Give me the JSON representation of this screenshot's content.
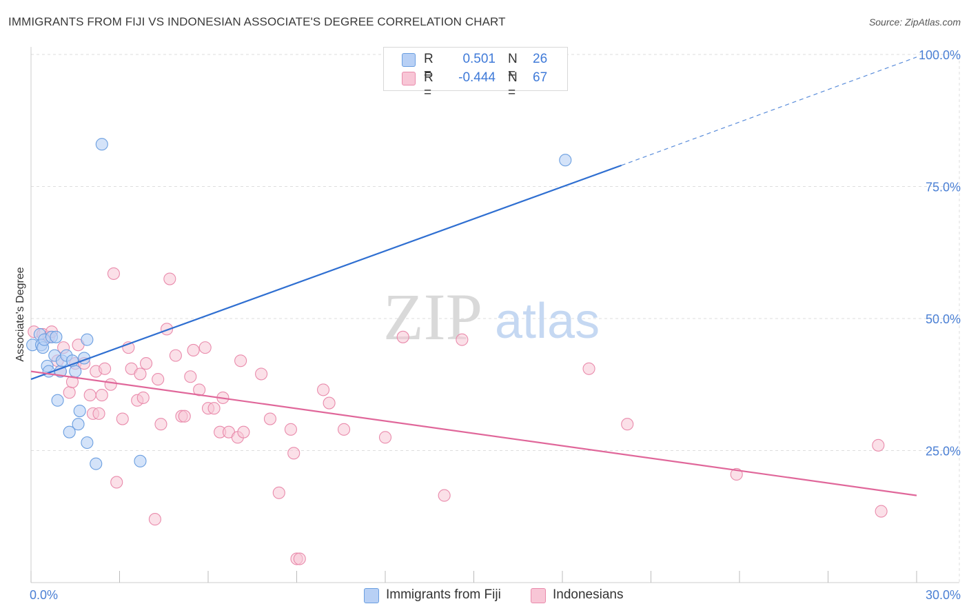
{
  "header": {
    "title": "IMMIGRANTS FROM FIJI VS INDONESIAN ASSOCIATE'S DEGREE CORRELATION CHART",
    "source": "Source: ZipAtlas.com"
  },
  "watermark": {
    "zip": "ZIP",
    "atlas": "atlas"
  },
  "legend": {
    "rows": [
      {
        "r_label": "R =",
        "r_value": "0.501",
        "n_label": "N =",
        "n_value": "26"
      },
      {
        "r_label": "R =",
        "r_value": "-0.444",
        "n_label": "N =",
        "n_value": "67"
      }
    ]
  },
  "bottom_legend": {
    "fiji": "Immigrants from Fiji",
    "indonesians": "Indonesians"
  },
  "colors": {
    "fiji_fill": "#b8d0f5",
    "fiji_stroke": "#6a9ee0",
    "fiji_line": "#2f6fd1",
    "indo_fill": "#f8c6d6",
    "indo_stroke": "#e98aab",
    "indo_line": "#e0679a",
    "grid": "#dddddd",
    "tick_text": "#4a7fd4"
  },
  "chart_data": {
    "type": "scatter",
    "title": "IMMIGRANTS FROM FIJI VS INDONESIAN ASSOCIATE'S DEGREE CORRELATION CHART",
    "xlabel": "",
    "ylabel": "Associate's Degree",
    "xlim": [
      0,
      30
    ],
    "ylim": [
      0,
      100
    ],
    "x_tick_labels": [
      "0.0%",
      "30.0%"
    ],
    "y_ticks": [
      25,
      50,
      75,
      100
    ],
    "y_tick_labels": [
      "25.0%",
      "50.0%",
      "75.0%",
      "100.0%"
    ],
    "grid": true,
    "series": [
      {
        "name": "Immigrants from Fiji",
        "r": 0.501,
        "n": 26,
        "trend": {
          "x0": 0,
          "y0": 38.5,
          "x1": 20.0,
          "y1": 79.0,
          "dash_to_x": 30,
          "dash_to_y": 99.5
        },
        "points": [
          [
            0.05,
            45
          ],
          [
            0.3,
            47
          ],
          [
            0.35,
            45
          ],
          [
            0.4,
            44.5
          ],
          [
            0.45,
            46
          ],
          [
            0.55,
            41
          ],
          [
            0.6,
            40
          ],
          [
            0.7,
            46.5
          ],
          [
            0.8,
            43
          ],
          [
            0.9,
            34.5
          ],
          [
            0.85,
            46.5
          ],
          [
            1.0,
            40
          ],
          [
            1.05,
            42
          ],
          [
            1.2,
            43
          ],
          [
            1.3,
            28.5
          ],
          [
            1.4,
            42
          ],
          [
            1.5,
            40
          ],
          [
            1.6,
            30
          ],
          [
            1.65,
            32.5
          ],
          [
            1.8,
            42.5
          ],
          [
            1.9,
            26.5
          ],
          [
            1.9,
            46
          ],
          [
            2.2,
            22.5
          ],
          [
            2.4,
            83
          ],
          [
            3.7,
            23
          ],
          [
            18.1,
            80
          ]
        ]
      },
      {
        "name": "Indonesians",
        "r": -0.444,
        "n": 67,
        "trend": {
          "x0": 0,
          "y0": 40.0,
          "x1": 30,
          "y1": 16.5
        },
        "points": [
          [
            0.1,
            47.5
          ],
          [
            0.4,
            47
          ],
          [
            0.6,
            46.5
          ],
          [
            0.7,
            47.5
          ],
          [
            0.9,
            42
          ],
          [
            1.0,
            40
          ],
          [
            1.1,
            44.5
          ],
          [
            1.3,
            36
          ],
          [
            1.4,
            38
          ],
          [
            1.5,
            41.5
          ],
          [
            1.6,
            45
          ],
          [
            1.8,
            41.5
          ],
          [
            2.0,
            35.5
          ],
          [
            2.1,
            32
          ],
          [
            2.2,
            40
          ],
          [
            2.4,
            35.5
          ],
          [
            2.3,
            32
          ],
          [
            2.5,
            40.5
          ],
          [
            2.7,
            37.5
          ],
          [
            2.8,
            58.5
          ],
          [
            2.9,
            19
          ],
          [
            3.1,
            31
          ],
          [
            3.3,
            44.5
          ],
          [
            3.4,
            40.5
          ],
          [
            3.6,
            34.5
          ],
          [
            3.7,
            39.5
          ],
          [
            3.8,
            35
          ],
          [
            3.9,
            41.5
          ],
          [
            4.2,
            12
          ],
          [
            4.3,
            38.5
          ],
          [
            4.4,
            30
          ],
          [
            4.6,
            48
          ],
          [
            4.7,
            57.5
          ],
          [
            4.9,
            43
          ],
          [
            5.1,
            31.5
          ],
          [
            5.2,
            31.5
          ],
          [
            5.4,
            39
          ],
          [
            5.5,
            44
          ],
          [
            5.7,
            36.5
          ],
          [
            5.9,
            44.5
          ],
          [
            6.0,
            33
          ],
          [
            6.2,
            33
          ],
          [
            6.4,
            28.5
          ],
          [
            6.5,
            35
          ],
          [
            6.7,
            28.5
          ],
          [
            7.0,
            27.5
          ],
          [
            7.1,
            42
          ],
          [
            7.2,
            28.5
          ],
          [
            7.8,
            39.5
          ],
          [
            8.1,
            31
          ],
          [
            8.4,
            17
          ],
          [
            8.8,
            29
          ],
          [
            8.9,
            24.5
          ],
          [
            9.0,
            4.5
          ],
          [
            9.1,
            4.5
          ],
          [
            9.9,
            36.5
          ],
          [
            10.1,
            34
          ],
          [
            10.6,
            29
          ],
          [
            12.0,
            27.5
          ],
          [
            12.6,
            46.5
          ],
          [
            14.0,
            16.5
          ],
          [
            14.6,
            46
          ],
          [
            18.9,
            40.5
          ],
          [
            20.2,
            30
          ],
          [
            23.9,
            20.5
          ],
          [
            28.7,
            26
          ],
          [
            28.8,
            13.5
          ]
        ]
      }
    ]
  }
}
